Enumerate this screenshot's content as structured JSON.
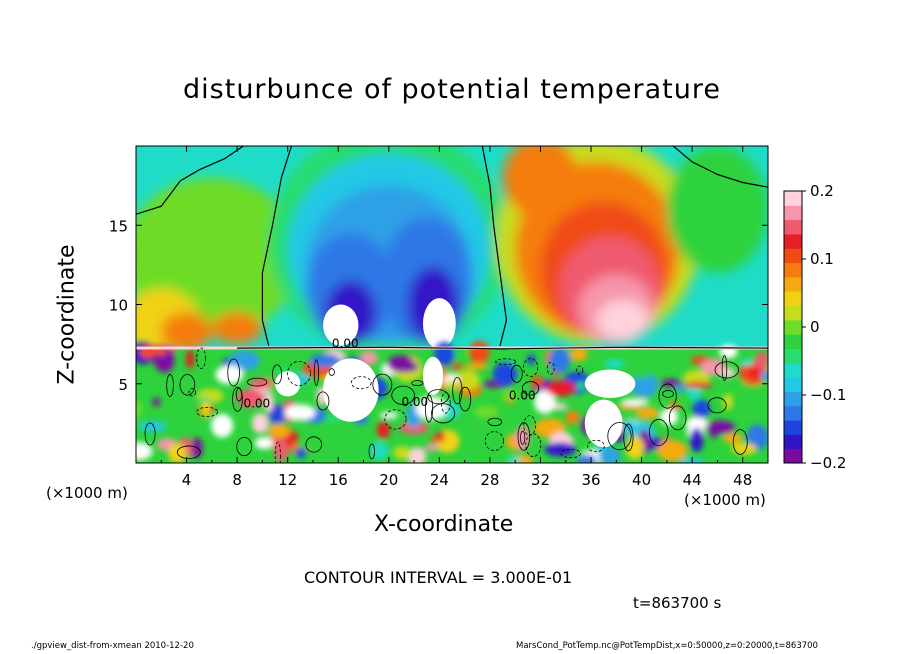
{
  "chart_data": {
    "type": "heatmap",
    "title": "disturbunce of potential temperature",
    "xlabel": "X-coordinate",
    "ylabel": "Z-coordinate",
    "x_unit": "(×1000 m)",
    "xlim": [
      0,
      50
    ],
    "ylim": [
      0,
      20
    ],
    "x_ticks": [
      4,
      8,
      12,
      16,
      20,
      24,
      28,
      32,
      36,
      40,
      44,
      48
    ],
    "y_ticks": [
      5,
      10,
      15
    ],
    "colorbar": {
      "range": [
        -0.2,
        0.2
      ],
      "ticks": [
        0.2,
        0.1,
        0,
        -0.1,
        -0.2
      ],
      "tick_labels": [
        "0.2",
        "0.1",
        "0",
        "−0.1",
        "−0.2"
      ],
      "colors": [
        "#7d0aa0",
        "#3214c8",
        "#1e46dc",
        "#2d78e6",
        "#2da0e6",
        "#23c8e6",
        "#1edcc8",
        "#28dc6e",
        "#2dd23c",
        "#6edc28",
        "#c8dc1e",
        "#f0d214",
        "#f5aa0f",
        "#f57d0f",
        "#f04b14",
        "#e61e28",
        "#f05a6e",
        "#f596aa",
        "#ffd2dc"
      ]
    },
    "regions": [
      {
        "name": "negative disturbance column",
        "x_range": [
          10.5,
          29.5
        ],
        "z_range": [
          7,
          20
        ],
        "min_value": -0.2
      },
      {
        "name": "positive disturbance column",
        "x_range": [
          29,
          44.5
        ],
        "z_range": [
          7,
          20
        ],
        "max_value": 0.2
      },
      {
        "name": "turbulent boundary layer",
        "z_range": [
          0,
          7.3
        ]
      }
    ],
    "contour_labels": [
      "0.00",
      "0.00",
      "0.00",
      "0.00"
    ]
  },
  "annotations": {
    "contour_interval": "CONTOUR INTERVAL = 3.000E-01",
    "time": "t=863700 s",
    "footer_left": "./gpview_dist-from-xmean  2010-12-20",
    "footer_right": "MarsCond_PotTemp.nc@PotTempDist,x=0:50000,z=0:20000,t=863700"
  }
}
